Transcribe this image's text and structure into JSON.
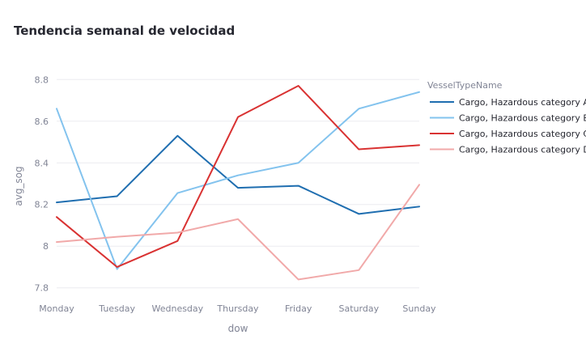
{
  "chart_data": {
    "type": "line",
    "title": "Tendencia semanal de velocidad",
    "xlabel": "dow",
    "ylabel": "avg_sog",
    "ylim": [
      7.76,
      8.84
    ],
    "yticks": [
      7.8,
      8,
      8.2,
      8.4,
      8.6,
      8.8
    ],
    "ytick_labels": [
      "7.8",
      "8",
      "8.2",
      "8.4",
      "8.6",
      "8.8"
    ],
    "categories": [
      "Monday",
      "Tuesday",
      "Wednesday",
      "Thursday",
      "Friday",
      "Saturday",
      "Sunday"
    ],
    "grid": true,
    "legend": {
      "title": "VesselTypeName",
      "position": "right"
    },
    "series": [
      {
        "name": "Cargo, Hazardous category A",
        "color": "#1f6eb0",
        "values": [
          8.21,
          8.24,
          8.53,
          8.28,
          8.29,
          8.155,
          8.19
        ]
      },
      {
        "name": "Cargo, Hazardous category B",
        "color": "#83c3ee",
        "values": [
          8.66,
          7.89,
          8.255,
          8.34,
          8.4,
          8.66,
          8.74
        ]
      },
      {
        "name": "Cargo, Hazardous category C",
        "color": "#d93232",
        "values": [
          8.14,
          7.9,
          8.025,
          8.62,
          8.77,
          8.465,
          8.485
        ]
      },
      {
        "name": "Cargo, Hazardous category D",
        "color": "#f1a9a9",
        "values": [
          8.02,
          8.045,
          8.065,
          8.13,
          7.84,
          7.885,
          8.295
        ]
      }
    ]
  }
}
